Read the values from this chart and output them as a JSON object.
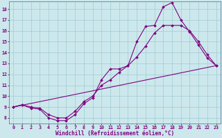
{
  "title": "",
  "xlabel": "Windchill (Refroidissement éolien,°C)",
  "ylabel": "",
  "bg_color": "#cce8ec",
  "line_color": "#800080",
  "xlim": [
    -0.5,
    23.5
  ],
  "ylim": [
    7.5,
    18.7
  ],
  "xticks": [
    0,
    1,
    2,
    3,
    4,
    5,
    6,
    7,
    8,
    9,
    10,
    11,
    12,
    13,
    14,
    15,
    16,
    17,
    18,
    19,
    20,
    21,
    22,
    23
  ],
  "yticks": [
    8,
    9,
    10,
    11,
    12,
    13,
    14,
    15,
    16,
    17,
    18
  ],
  "curve1_x": [
    0,
    1,
    2,
    3,
    4,
    5,
    6,
    7,
    8,
    9,
    10,
    11,
    12,
    13,
    14,
    15,
    16,
    17,
    18,
    19,
    20,
    21,
    22,
    23
  ],
  "curve1_y": [
    9.0,
    9.2,
    8.9,
    8.8,
    8.0,
    7.75,
    7.75,
    8.3,
    9.3,
    9.85,
    11.5,
    12.5,
    12.5,
    12.8,
    15.0,
    16.4,
    16.5,
    18.2,
    18.6,
    17.0,
    15.9,
    14.7,
    13.5,
    12.8
  ],
  "curve2_x": [
    0,
    1,
    2,
    3,
    4,
    5,
    6,
    7,
    8,
    9,
    10,
    11,
    12,
    13,
    14,
    15,
    16,
    17,
    18,
    19,
    20,
    21,
    22,
    23
  ],
  "curve2_y": [
    9.0,
    9.2,
    9.0,
    8.9,
    8.3,
    8.0,
    8.0,
    8.6,
    9.5,
    10.0,
    11.0,
    11.5,
    12.2,
    12.8,
    13.6,
    14.6,
    15.8,
    16.5,
    16.5,
    16.5,
    16.0,
    15.0,
    13.8,
    12.8
  ],
  "curve3_x": [
    0,
    23
  ],
  "curve3_y": [
    9.0,
    12.8
  ],
  "marker": "D",
  "marker_size": 2.0,
  "line_width": 0.8,
  "grid_color": "#9fcbd1",
  "label_fontsize": 5.5,
  "tick_fontsize": 4.8
}
